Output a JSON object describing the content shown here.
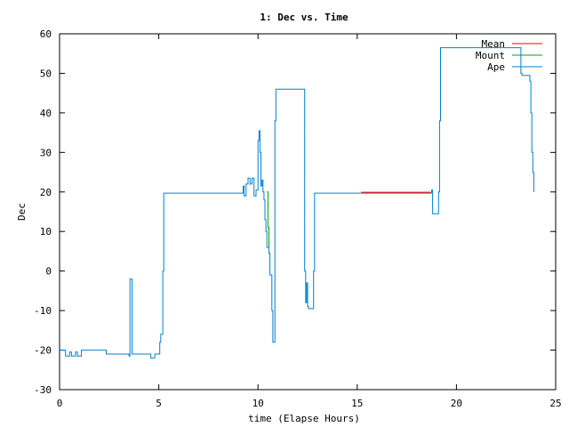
{
  "chart_data": {
    "type": "line",
    "title": "1: Dec vs. Time",
    "xlabel": "time (Elapse Hours)",
    "ylabel": "Dec",
    "xlim": [
      0,
      25
    ],
    "ylim": [
      -30,
      60
    ],
    "xticks": [
      0,
      5,
      10,
      15,
      20,
      25
    ],
    "yticks": [
      -30,
      -20,
      -10,
      0,
      10,
      20,
      30,
      40,
      50,
      60
    ],
    "grid": false,
    "legend_position": "top-right",
    "series": [
      {
        "name": "Mean",
        "color": "#ff0000",
        "x": [
          15.2,
          18.7
        ],
        "y": [
          19.9,
          19.9
        ]
      },
      {
        "name": "Mount",
        "color": "#00a000",
        "x": [
          10.45,
          10.5,
          10.55,
          10.6
        ],
        "y": [
          20,
          11,
          4.5,
          4.5
        ]
      },
      {
        "name": "Ape",
        "color": "#0080d0",
        "x": [
          0,
          0.25,
          0.3,
          0.5,
          0.6,
          0.8,
          0.9,
          1.1,
          1.2,
          2.25,
          2.35,
          3.15,
          3.5,
          3.55,
          3.6,
          3.65,
          3.7,
          3.75,
          4.55,
          4.6,
          4.8,
          4.95,
          5.05,
          5.1,
          5.2,
          5.25,
          9.1,
          9.25,
          9.3,
          9.4,
          9.5,
          9.6,
          9.7,
          9.8,
          9.9,
          10.0,
          10.05,
          10.1,
          10.15,
          10.2,
          10.25,
          10.3,
          10.35,
          10.4,
          10.45,
          10.55,
          10.6,
          10.7,
          10.75,
          10.8,
          10.85,
          10.9,
          10.95,
          12.3,
          12.35,
          12.4,
          12.45,
          12.5,
          12.55,
          12.75,
          12.8,
          12.85,
          15.2,
          18.7,
          18.75,
          18.8,
          18.85,
          19.05,
          19.1,
          19.15,
          19.2,
          21.3,
          21.4,
          22.7,
          22.75,
          23.2,
          23.25,
          23.3,
          23.65,
          23.7,
          23.75,
          23.8,
          23.85,
          23.9
        ],
        "y": [
          -20,
          -20,
          -21.5,
          -20.5,
          -21.5,
          -20.5,
          -21.5,
          -20,
          -20,
          -20,
          -21,
          -21,
          -21.5,
          -2,
          -2,
          -21,
          -21,
          -21,
          -21,
          -22,
          -21,
          -21,
          -18,
          -16,
          0,
          19.7,
          19.7,
          21.5,
          19,
          22,
          23.5,
          22,
          23.5,
          19,
          20.5,
          33,
          35.5,
          30,
          21.5,
          23,
          20,
          18,
          13,
          10,
          6,
          4.5,
          -1,
          -10,
          -18,
          -18,
          38,
          46,
          46,
          46,
          0,
          -8,
          -3,
          -9,
          -9.5,
          -9.5,
          0,
          19.7,
          19.7,
          19.7,
          20.5,
          14.5,
          14.5,
          14.5,
          20,
          38,
          56.5,
          56.5,
          56.5,
          56.5,
          56.5,
          56.5,
          50,
          49.5,
          49.5,
          48,
          40,
          30,
          25,
          20
        ]
      }
    ]
  }
}
